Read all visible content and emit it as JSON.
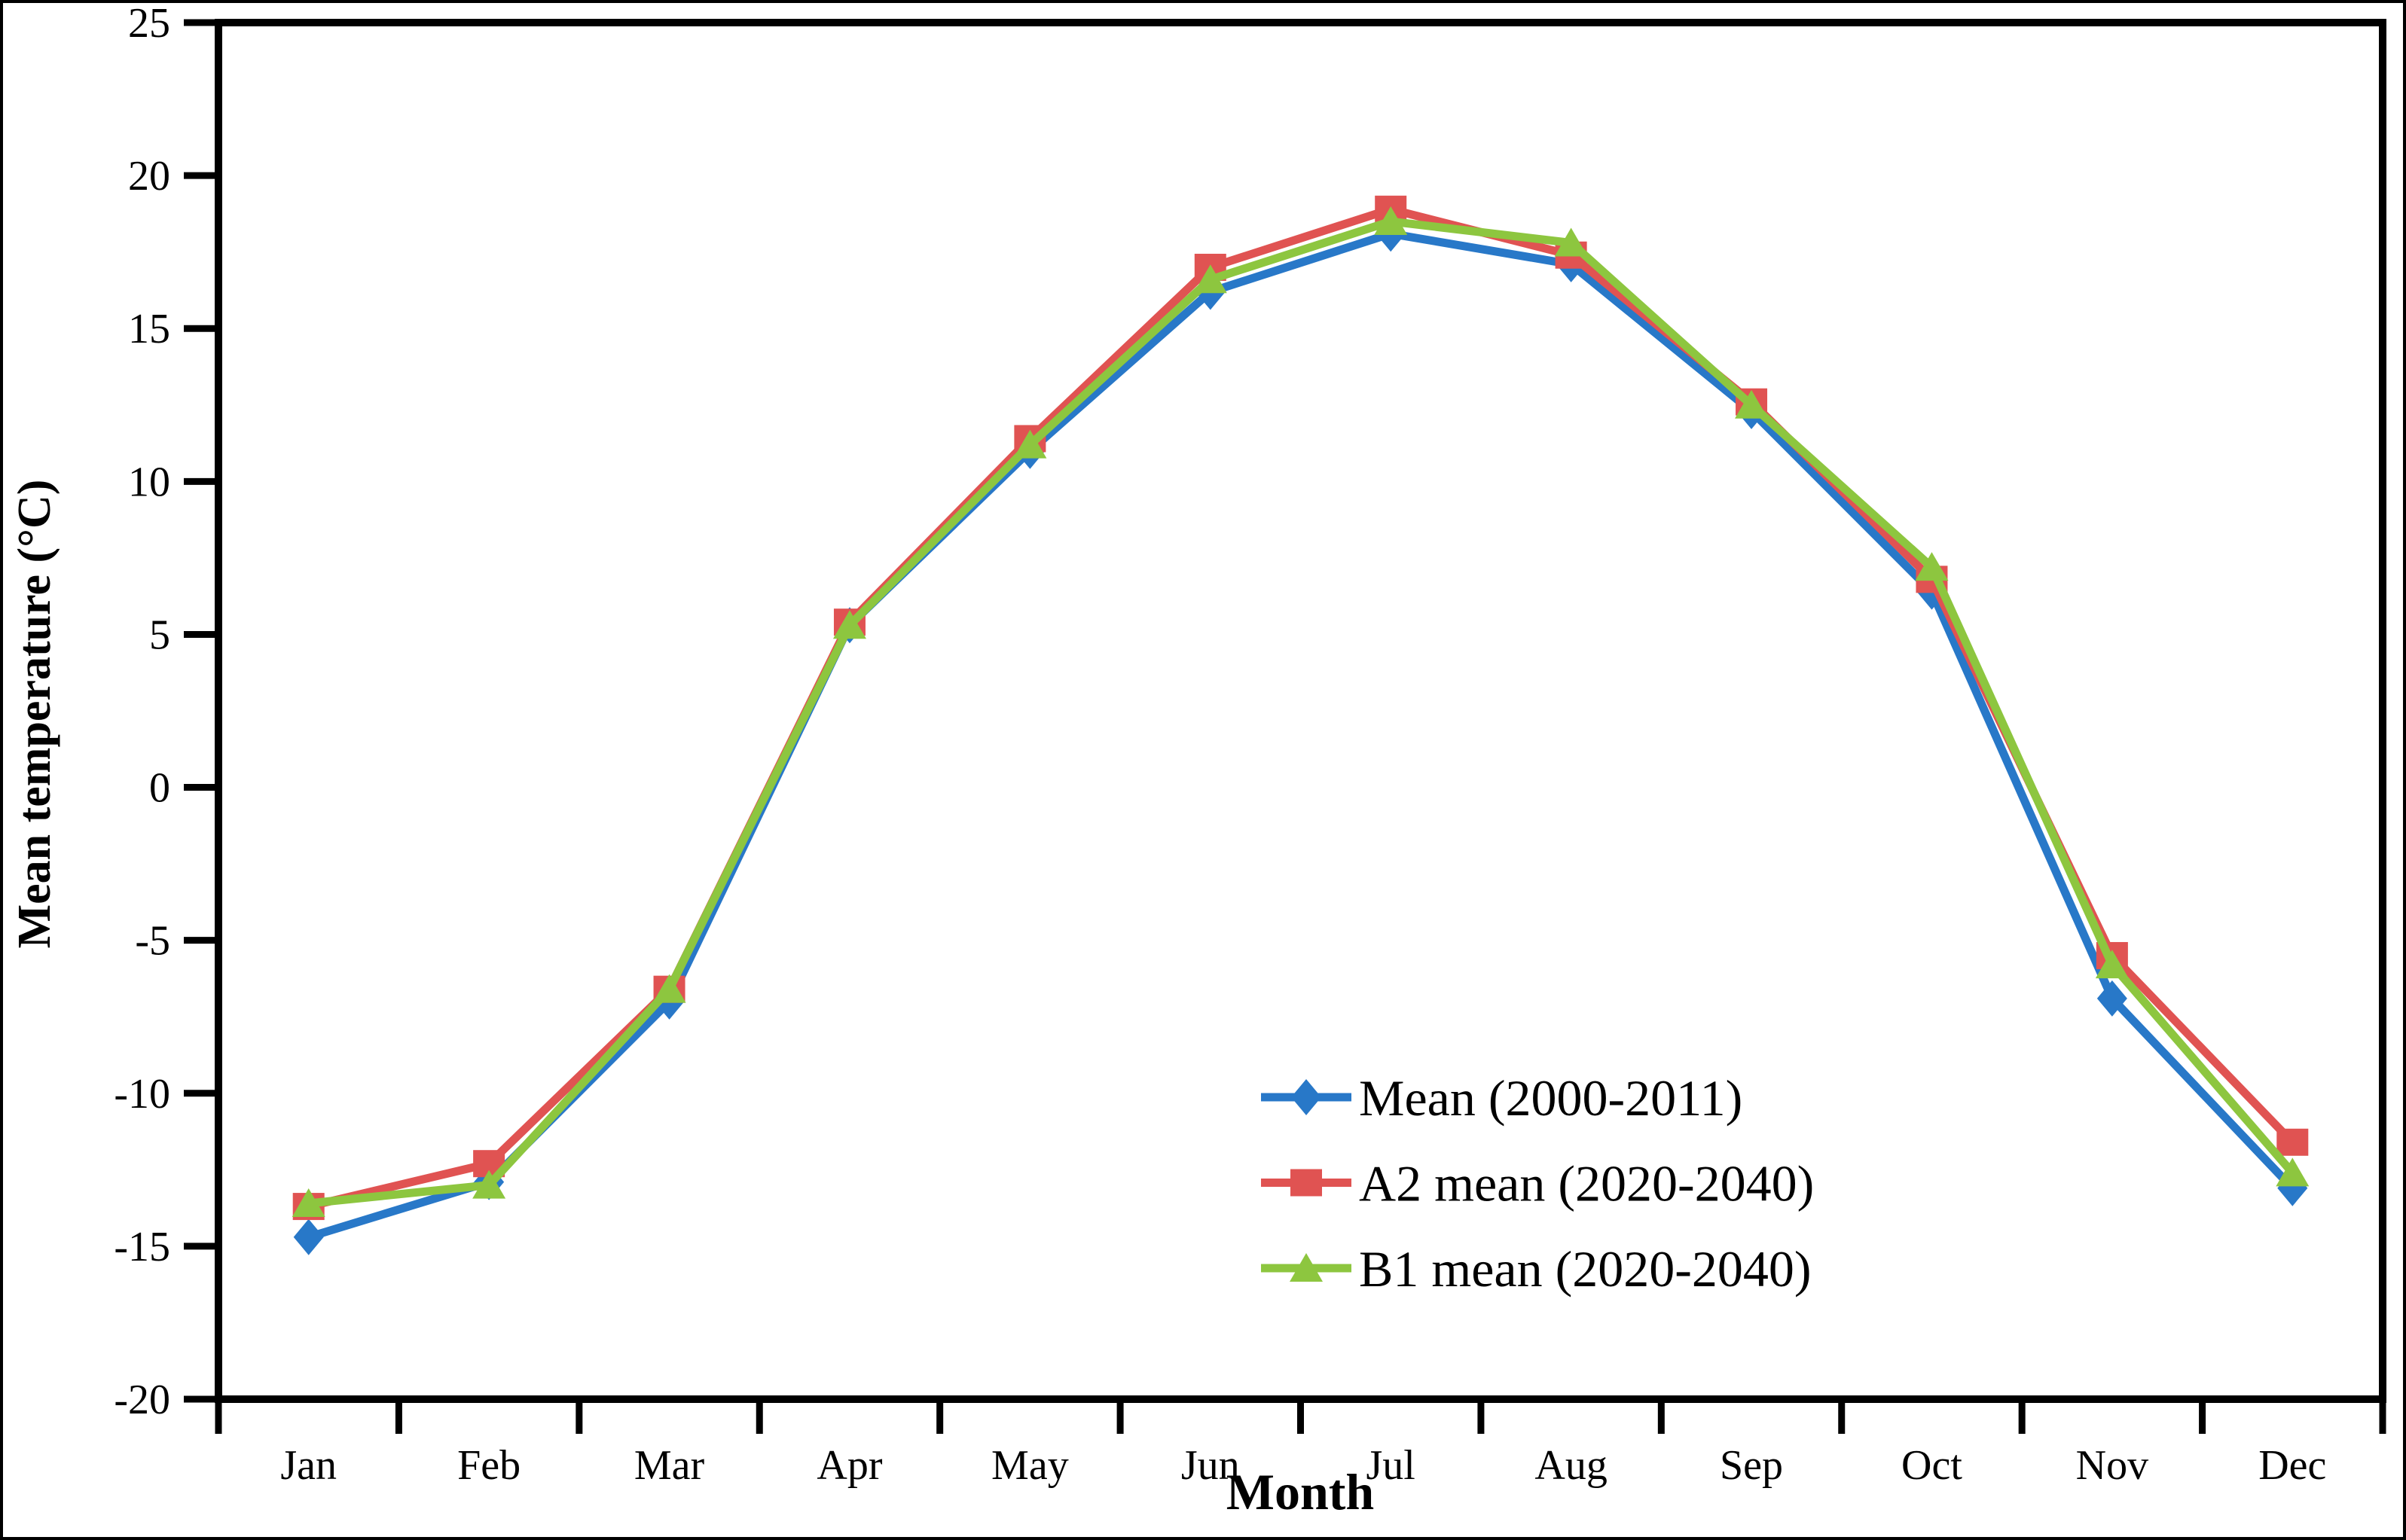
{
  "figure": {
    "background": "#ffffff",
    "frame_color": "#000000"
  },
  "chart_data": {
    "type": "line",
    "title": "",
    "xlabel": "Month",
    "ylabel": "Mean temperature (°C)",
    "categories": [
      "Jan",
      "Feb",
      "Mar",
      "Apr",
      "May",
      "Jun",
      "Jul",
      "Aug",
      "Sep",
      "Oct",
      "Nov",
      "Dec"
    ],
    "ylim": [
      -20,
      25
    ],
    "ytick_step": 5,
    "ytick_labels": [
      "25",
      "20",
      "15",
      "10",
      "5",
      "0",
      "-5",
      "-10",
      "-15",
      "-20"
    ],
    "grid": false,
    "axis_color": "#000000",
    "legend_position": "inside-lower-right",
    "series": [
      {
        "name": "Mean (2000-2011)",
        "marker": "diamond",
        "color": "#2878C8",
        "values": [
          -14.7,
          -12.9,
          -7.0,
          5.3,
          11.0,
          16.2,
          18.1,
          17.1,
          12.3,
          6.4,
          -6.9,
          -13.1
        ]
      },
      {
        "name": "A2 mean (2020-2040)",
        "marker": "square",
        "color": "#E05352",
        "values": [
          -13.7,
          -12.3,
          -6.6,
          5.4,
          11.4,
          17.0,
          18.9,
          17.4,
          12.6,
          6.8,
          -5.5,
          -11.6
        ]
      },
      {
        "name": "B1 mean (2020-2040)",
        "marker": "triangle",
        "color": "#8DC63F",
        "values": [
          -13.6,
          -13.0,
          -6.6,
          5.3,
          11.2,
          16.6,
          18.5,
          17.8,
          12.5,
          7.2,
          -5.8,
          -12.6
        ]
      }
    ]
  }
}
